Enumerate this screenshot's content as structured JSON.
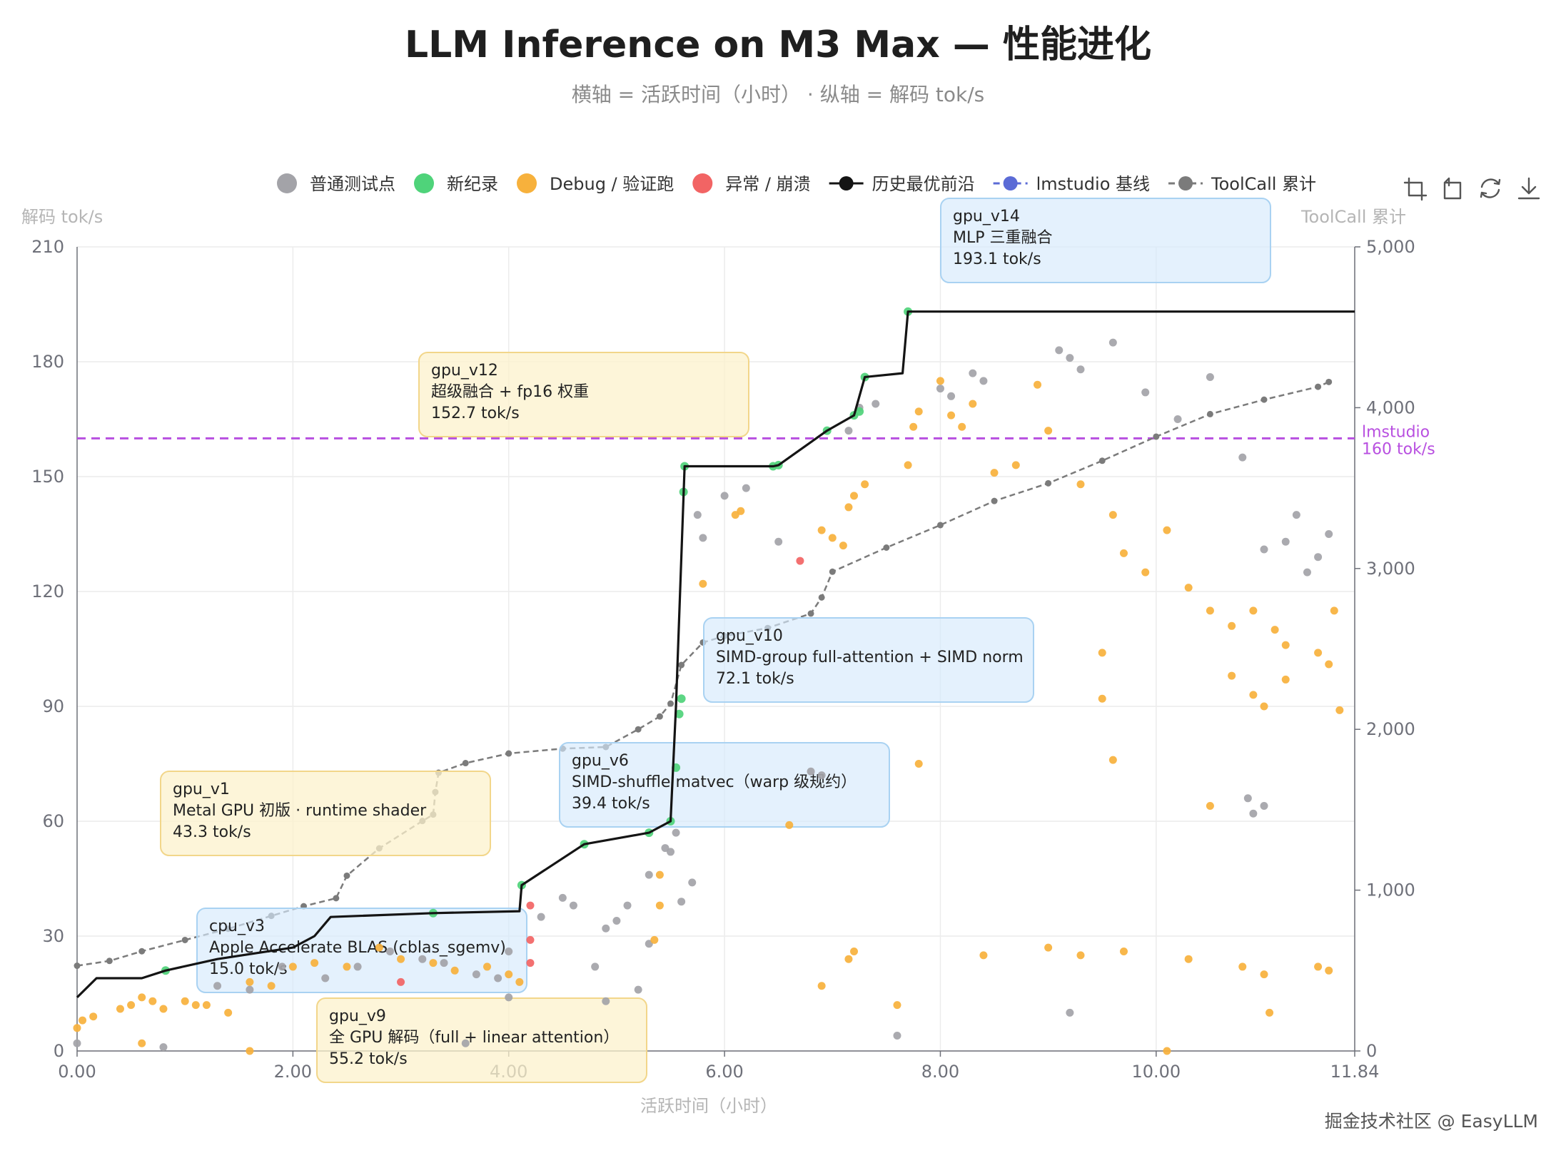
{
  "title": "LLM Inference on M3 Max — 性能进化",
  "subtitle": "横轴 = 活跃时间（小时） · 纵轴 = 解码 tok/s",
  "watermark": "掘金技术社区 @ EasyLLM",
  "toolbox": [
    "zoom-icon",
    "zoom-reset-icon",
    "restore-icon",
    "download-icon"
  ],
  "legend": [
    {
      "label": "普通测试点",
      "type": "circle",
      "color": "#a3a3a8"
    },
    {
      "label": "新纪录",
      "type": "circle",
      "color": "#4fd37a"
    },
    {
      "label": "Debug / 验证跑",
      "type": "circle",
      "color": "#f7b13c"
    },
    {
      "label": "异常 / 崩溃",
      "type": "circle",
      "color": "#f26464"
    },
    {
      "label": "历史最优前沿",
      "type": "line",
      "color": "#141414"
    },
    {
      "label": "lmstudio 基线",
      "type": "dash",
      "color": "#5b6bd6"
    },
    {
      "label": "ToolCall 累计",
      "type": "dash",
      "color": "#7b7b7b"
    }
  ],
  "chart_data": {
    "type": "scatter",
    "title": "LLM Inference on M3 Max — 性能进化",
    "xlabel": "活跃时间（小时）",
    "ylabel": "解码 tok/s",
    "y2label": "ToolCall 累计",
    "xlim": [
      0,
      11.84
    ],
    "ylim": [
      0,
      210
    ],
    "y2lim": [
      0,
      5000
    ],
    "x_ticks": [
      "0.00",
      "2.00",
      "4.00",
      "6.00",
      "8.00",
      "10.00",
      "11.84"
    ],
    "y_ticks": [
      "0",
      "30",
      "60",
      "90",
      "120",
      "150",
      "180",
      "210"
    ],
    "y2_ticks": [
      "0",
      "1,000",
      "2,000",
      "3,000",
      "4,000",
      "5,000"
    ],
    "grid": true,
    "legend_position": "top",
    "baseline": {
      "name": "lmstudio 基线",
      "value": 160,
      "label_line1": "lmstudio",
      "label_line2": "160 tok/s",
      "color": "#b84fe0"
    },
    "frontier": {
      "name": "历史最优前沿",
      "color": "#141414",
      "points": [
        [
          0,
          14
        ],
        [
          0.18,
          19
        ],
        [
          0.6,
          19
        ],
        [
          0.82,
          21
        ],
        [
          1.3,
          24
        ],
        [
          2.0,
          27
        ],
        [
          2.2,
          30
        ],
        [
          2.35,
          35
        ],
        [
          3.3,
          36
        ],
        [
          4.1,
          36.5
        ],
        [
          4.12,
          43.3
        ],
        [
          4.7,
          54
        ],
        [
          5.3,
          57
        ],
        [
          5.5,
          60
        ],
        [
          5.55,
          90
        ],
        [
          5.63,
          152.7
        ],
        [
          6.45,
          152.7
        ],
        [
          6.5,
          153
        ],
        [
          6.95,
          162
        ],
        [
          7.2,
          166
        ],
        [
          7.3,
          176
        ],
        [
          7.65,
          177
        ],
        [
          7.7,
          193.1
        ],
        [
          11.84,
          193.1
        ]
      ]
    },
    "toolcall": {
      "name": "ToolCall 累计",
      "color": "#7b7b7b",
      "points": [
        [
          0,
          530
        ],
        [
          0.3,
          560
        ],
        [
          0.6,
          620
        ],
        [
          1.0,
          690
        ],
        [
          1.4,
          760
        ],
        [
          1.8,
          840
        ],
        [
          2.1,
          900
        ],
        [
          2.4,
          950
        ],
        [
          2.5,
          1090
        ],
        [
          2.8,
          1260
        ],
        [
          3.2,
          1430
        ],
        [
          3.3,
          1470
        ],
        [
          3.32,
          1610
        ],
        [
          3.35,
          1730
        ],
        [
          3.6,
          1790
        ],
        [
          4.0,
          1850
        ],
        [
          4.5,
          1880
        ],
        [
          4.9,
          1890
        ],
        [
          5.2,
          2000
        ],
        [
          5.4,
          2080
        ],
        [
          5.5,
          2160
        ],
        [
          5.6,
          2400
        ],
        [
          5.8,
          2540
        ],
        [
          6.0,
          2580
        ],
        [
          6.4,
          2630
        ],
        [
          6.8,
          2720
        ],
        [
          6.9,
          2820
        ],
        [
          7.0,
          2980
        ],
        [
          7.5,
          3130
        ],
        [
          8.0,
          3270
        ],
        [
          8.5,
          3420
        ],
        [
          9.0,
          3530
        ],
        [
          9.5,
          3670
        ],
        [
          10.0,
          3820
        ],
        [
          10.5,
          3960
        ],
        [
          11.0,
          4050
        ],
        [
          11.5,
          4130
        ],
        [
          11.6,
          4160
        ]
      ]
    },
    "series": [
      {
        "name": "普通测试点",
        "color": "#a3a3a8",
        "points": [
          [
            0,
            2
          ],
          [
            0.8,
            1
          ],
          [
            1.3,
            17
          ],
          [
            1.6,
            16
          ],
          [
            1.9,
            22
          ],
          [
            2.6,
            22
          ],
          [
            2.9,
            26
          ],
          [
            3.2,
            24
          ],
          [
            3.4,
            23
          ],
          [
            3.7,
            20
          ],
          [
            3.9,
            19
          ],
          [
            4.0,
            26
          ],
          [
            4.3,
            35
          ],
          [
            4.5,
            40
          ],
          [
            4.6,
            38
          ],
          [
            4.9,
            32
          ],
          [
            5.0,
            34
          ],
          [
            5.1,
            38
          ],
          [
            5.3,
            46
          ],
          [
            5.45,
            53
          ],
          [
            5.5,
            52
          ],
          [
            5.55,
            57
          ],
          [
            5.7,
            44
          ],
          [
            4.8,
            22
          ],
          [
            4.9,
            13
          ],
          [
            5.2,
            16
          ],
          [
            5.3,
            28
          ],
          [
            5.6,
            39
          ],
          [
            6.0,
            145
          ],
          [
            6.2,
            147
          ],
          [
            6.5,
            133
          ],
          [
            6.8,
            73
          ],
          [
            6.9,
            72
          ],
          [
            5.75,
            140
          ],
          [
            5.8,
            134
          ],
          [
            7.15,
            162
          ],
          [
            7.25,
            168
          ],
          [
            7.4,
            169
          ],
          [
            8.0,
            173
          ],
          [
            8.1,
            171
          ],
          [
            8.3,
            177
          ],
          [
            8.4,
            175
          ],
          [
            9.1,
            183
          ],
          [
            9.2,
            181
          ],
          [
            9.3,
            178
          ],
          [
            9.6,
            185
          ],
          [
            9.9,
            172
          ],
          [
            10.2,
            165
          ],
          [
            10.5,
            176
          ],
          [
            10.8,
            155
          ],
          [
            11.0,
            131
          ],
          [
            11.2,
            133
          ],
          [
            11.3,
            140
          ],
          [
            11.6,
            135
          ],
          [
            11.5,
            129
          ],
          [
            11.4,
            125
          ],
          [
            10.9,
            62
          ],
          [
            11.0,
            64
          ],
          [
            10.85,
            66
          ],
          [
            9.2,
            10
          ],
          [
            7.6,
            4
          ],
          [
            2.3,
            19
          ],
          [
            4.0,
            14
          ],
          [
            3.6,
            2
          ]
        ]
      },
      {
        "name": "新纪录",
        "color": "#4fd37a",
        "points": [
          [
            0.82,
            21
          ],
          [
            3.3,
            36
          ],
          [
            4.12,
            43.3
          ],
          [
            4.7,
            54
          ],
          [
            5.3,
            57
          ],
          [
            5.5,
            60
          ],
          [
            5.55,
            74
          ],
          [
            5.58,
            88
          ],
          [
            5.6,
            92
          ],
          [
            5.63,
            152.7
          ],
          [
            5.62,
            146
          ],
          [
            6.45,
            152.7
          ],
          [
            6.5,
            153
          ],
          [
            6.95,
            162
          ],
          [
            7.2,
            166
          ],
          [
            7.25,
            167
          ],
          [
            7.3,
            176
          ],
          [
            7.7,
            193.1
          ]
        ]
      },
      {
        "name": "Debug / 验证跑",
        "color": "#f7b13c",
        "points": [
          [
            0,
            6
          ],
          [
            0.05,
            8
          ],
          [
            0.15,
            9
          ],
          [
            0.4,
            11
          ],
          [
            0.5,
            12
          ],
          [
            0.6,
            14
          ],
          [
            0.7,
            13
          ],
          [
            0.8,
            11
          ],
          [
            1.0,
            13
          ],
          [
            1.1,
            12
          ],
          [
            1.2,
            12
          ],
          [
            1.4,
            10
          ],
          [
            1.6,
            18
          ],
          [
            1.8,
            17
          ],
          [
            2.0,
            22
          ],
          [
            2.2,
            23
          ],
          [
            2.5,
            22
          ],
          [
            2.8,
            27
          ],
          [
            3.0,
            24
          ],
          [
            3.3,
            23
          ],
          [
            3.5,
            21
          ],
          [
            3.8,
            22
          ],
          [
            4.0,
            20
          ],
          [
            4.1,
            18
          ],
          [
            0.6,
            2
          ],
          [
            1.6,
            0
          ],
          [
            5.4,
            46
          ],
          [
            5.4,
            38
          ],
          [
            5.35,
            29
          ],
          [
            5.8,
            122
          ],
          [
            6.1,
            140
          ],
          [
            6.15,
            141
          ],
          [
            6.6,
            59
          ],
          [
            6.9,
            136
          ],
          [
            7.0,
            134
          ],
          [
            7.1,
            132
          ],
          [
            7.15,
            142
          ],
          [
            7.2,
            145
          ],
          [
            7.3,
            148
          ],
          [
            7.7,
            153
          ],
          [
            7.75,
            163
          ],
          [
            7.8,
            167
          ],
          [
            8.0,
            175
          ],
          [
            8.1,
            166
          ],
          [
            8.2,
            163
          ],
          [
            8.3,
            169
          ],
          [
            8.5,
            151
          ],
          [
            8.7,
            153
          ],
          [
            8.9,
            174
          ],
          [
            9.0,
            162
          ],
          [
            9.3,
            148
          ],
          [
            9.6,
            140
          ],
          [
            9.7,
            130
          ],
          [
            9.9,
            125
          ],
          [
            10.1,
            136
          ],
          [
            10.3,
            121
          ],
          [
            10.5,
            115
          ],
          [
            10.7,
            111
          ],
          [
            10.9,
            115
          ],
          [
            11.1,
            110
          ],
          [
            11.2,
            106
          ],
          [
            11.5,
            104
          ],
          [
            11.6,
            101
          ],
          [
            11.65,
            115
          ],
          [
            11.7,
            89
          ],
          [
            10.7,
            98
          ],
          [
            10.9,
            93
          ],
          [
            11.0,
            90
          ],
          [
            11.2,
            97
          ],
          [
            9.5,
            104
          ],
          [
            9.5,
            92
          ],
          [
            9.6,
            76
          ],
          [
            7.8,
            75
          ],
          [
            10.5,
            64
          ],
          [
            9.0,
            27
          ],
          [
            9.3,
            25
          ],
          [
            9.7,
            26
          ],
          [
            10.3,
            24
          ],
          [
            11.5,
            22
          ],
          [
            11.6,
            21
          ],
          [
            10.8,
            22
          ],
          [
            11.0,
            20
          ],
          [
            11.05,
            10
          ],
          [
            8.4,
            25
          ],
          [
            7.2,
            26
          ],
          [
            7.15,
            24
          ],
          [
            6.9,
            17
          ],
          [
            7.6,
            12
          ],
          [
            10.1,
            0
          ]
        ]
      },
      {
        "name": "异常 / 崩溃",
        "color": "#f26464",
        "points": [
          [
            3.0,
            18
          ],
          [
            4.2,
            38
          ],
          [
            4.2,
            29
          ],
          [
            4.2,
            23
          ],
          [
            6.7,
            128
          ]
        ]
      }
    ],
    "annotations": [
      {
        "label": "gpu_v14",
        "desc": "MLP 三重融合",
        "value": "193.1 tok/s",
        "style": "blue"
      },
      {
        "label": "gpu_v12",
        "desc": "超级融合 + fp16 权重",
        "value": "152.7 tok/s",
        "style": "yellow"
      },
      {
        "label": "gpu_v10",
        "desc": "SIMD-group full-attention + SIMD norm",
        "value": "72.1 tok/s",
        "style": "blue"
      },
      {
        "label": "gpu_v6",
        "desc": "SIMD-shuffle matvec（warp 级规约）",
        "value": "39.4 tok/s",
        "style": "blue"
      },
      {
        "label": "gpu_v1",
        "desc": "Metal GPU 初版 · runtime shader",
        "value": "43.3 tok/s",
        "style": "yellow"
      },
      {
        "label": "cpu_v3",
        "desc": "Apple Accelerate BLAS (cblas_sgemv)",
        "value": "15.0 tok/s",
        "style": "blue"
      },
      {
        "label": "gpu_v9",
        "desc": "全 GPU 解码（full + linear attention）",
        "value": "55.2 tok/s",
        "style": "yellow"
      }
    ]
  }
}
